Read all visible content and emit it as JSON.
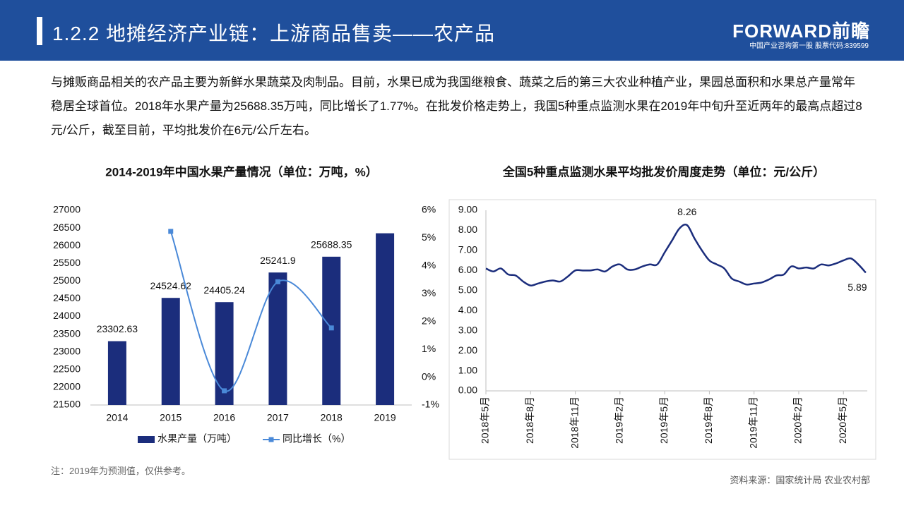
{
  "header": {
    "title": "1.2.2 地摊经济产业链：上游商品售卖——农产品",
    "logo": "FORWARD前瞻",
    "logo_sub": "中国产业咨询第一股 股票代码:839599"
  },
  "intro": "与摊贩商品相关的农产品主要为新鲜水果蔬菜及肉制品。目前，水果已成为我国继粮食、蔬菜之后的第三大农业种植产业，果园总面积和水果总产量常年稳居全球首位。2018年水果产量为25688.35万吨，同比增长了1.77%。在批发价格走势上，我国5种重点监测水果在2019年中旬升至近两年的最高点超过8元/公斤，截至目前，平均批发价在6元/公斤左右。",
  "note": "注：2019年为预测值，仅供参考。",
  "source": "资料来源：国家统计局 农业农村部",
  "chart_data": [
    {
      "type": "bar",
      "title": "2014-2019年中国水果产量情况（单位：万吨，%）",
      "categories": [
        "2014",
        "2015",
        "2016",
        "2017",
        "2018",
        "2019"
      ],
      "series": [
        {
          "name": "水果产量（万吨）",
          "color": "#1b2d7c",
          "values": [
            23302.63,
            24524.62,
            24405.24,
            25241.9,
            25688.35,
            26350
          ],
          "value_labels": [
            "23302.63",
            "24524.62",
            "24405.24",
            "25241.9",
            "25688.35",
            null
          ]
        },
        {
          "name": "同比增长（%）",
          "color": "#4a89d8",
          "axis": "y2",
          "values": [
            null,
            5.24,
            -0.49,
            3.43,
            1.77,
            null
          ]
        }
      ],
      "ylim": [
        21500,
        27000
      ],
      "yticks": [
        21500,
        22000,
        22500,
        23000,
        23500,
        24000,
        24500,
        25000,
        25500,
        26000,
        26500,
        27000
      ],
      "y2lim": [
        -1,
        6
      ],
      "y2ticks": [
        {
          "value": -1,
          "label": "-1%"
        },
        {
          "value": 0,
          "label": "0%"
        },
        {
          "value": 1,
          "label": "1%"
        },
        {
          "value": 2,
          "label": "2%"
        },
        {
          "value": 3,
          "label": "3%"
        },
        {
          "value": 4,
          "label": "4%"
        },
        {
          "value": 5,
          "label": "5%"
        },
        {
          "value": 6,
          "label": "6%"
        }
      ]
    },
    {
      "type": "line",
      "title": "全国5种重点监测水果平均批发价周度走势（单位：元/公斤）",
      "x": [
        0,
        0.5,
        1,
        1.5,
        2,
        2.5,
        3,
        3.5,
        4,
        4.5,
        5,
        5.5,
        6,
        6.5,
        7,
        7.5,
        8,
        8.5,
        9,
        9.5,
        10,
        10.5,
        11,
        11.5,
        12,
        12.5,
        13,
        13.5,
        14,
        14.5,
        15,
        15.5,
        16,
        16.5,
        17,
        17.5,
        18,
        18.5,
        19,
        19.5,
        20,
        20.5,
        21,
        21.5,
        22,
        22.5,
        23,
        23.5,
        24,
        24.5,
        25,
        25.5
      ],
      "values": [
        6.1,
        5.95,
        6.1,
        5.8,
        5.75,
        5.45,
        5.25,
        5.35,
        5.45,
        5.5,
        5.45,
        5.7,
        6.0,
        6.0,
        6.0,
        6.05,
        5.95,
        6.2,
        6.3,
        6.05,
        6.05,
        6.2,
        6.3,
        6.3,
        6.9,
        7.5,
        8.1,
        8.26,
        7.6,
        7.0,
        6.5,
        6.3,
        6.1,
        5.6,
        5.45,
        5.3,
        5.35,
        5.4,
        5.55,
        5.75,
        5.8,
        6.2,
        6.1,
        6.15,
        6.1,
        6.3,
        6.25,
        6.35,
        6.5,
        6.6,
        6.3,
        5.89
      ],
      "value_labels": [
        null,
        null,
        null,
        null,
        null,
        null,
        null,
        null,
        null,
        null,
        null,
        null,
        null,
        null,
        null,
        null,
        null,
        null,
        null,
        null,
        null,
        null,
        null,
        null,
        null,
        null,
        null,
        "8.26",
        null,
        null,
        null,
        null,
        null,
        null,
        null,
        null,
        null,
        null,
        null,
        null,
        null,
        null,
        null,
        null,
        null,
        null,
        null,
        null,
        null,
        null,
        null,
        "5.89"
      ],
      "color": "#1b2d7c",
      "xlim": [
        0,
        25.6
      ],
      "xticks": [
        {
          "value": 0,
          "label": "2018年5月"
        },
        {
          "value": 3,
          "label": "2018年8月"
        },
        {
          "value": 6,
          "label": "2018年11月"
        },
        {
          "value": 9,
          "label": "2019年2月"
        },
        {
          "value": 12,
          "label": "2019年5月"
        },
        {
          "value": 15,
          "label": "2019年8月"
        },
        {
          "value": 18,
          "label": "2019年11月"
        },
        {
          "value": 21,
          "label": "2020年2月"
        },
        {
          "value": 24,
          "label": "2020年5月"
        }
      ],
      "ylim": [
        0,
        9
      ],
      "yticks": [
        {
          "value": 0,
          "label": "0.00"
        },
        {
          "value": 1,
          "label": "1.00"
        },
        {
          "value": 2,
          "label": "2.00"
        },
        {
          "value": 3,
          "label": "3.00"
        },
        {
          "value": 4,
          "label": "4.00"
        },
        {
          "value": 5,
          "label": "5.00"
        },
        {
          "value": 6,
          "label": "6.00"
        },
        {
          "value": 7,
          "label": "7.00"
        },
        {
          "value": 8,
          "label": "8.00"
        },
        {
          "value": 9,
          "label": "9.00"
        }
      ]
    }
  ]
}
